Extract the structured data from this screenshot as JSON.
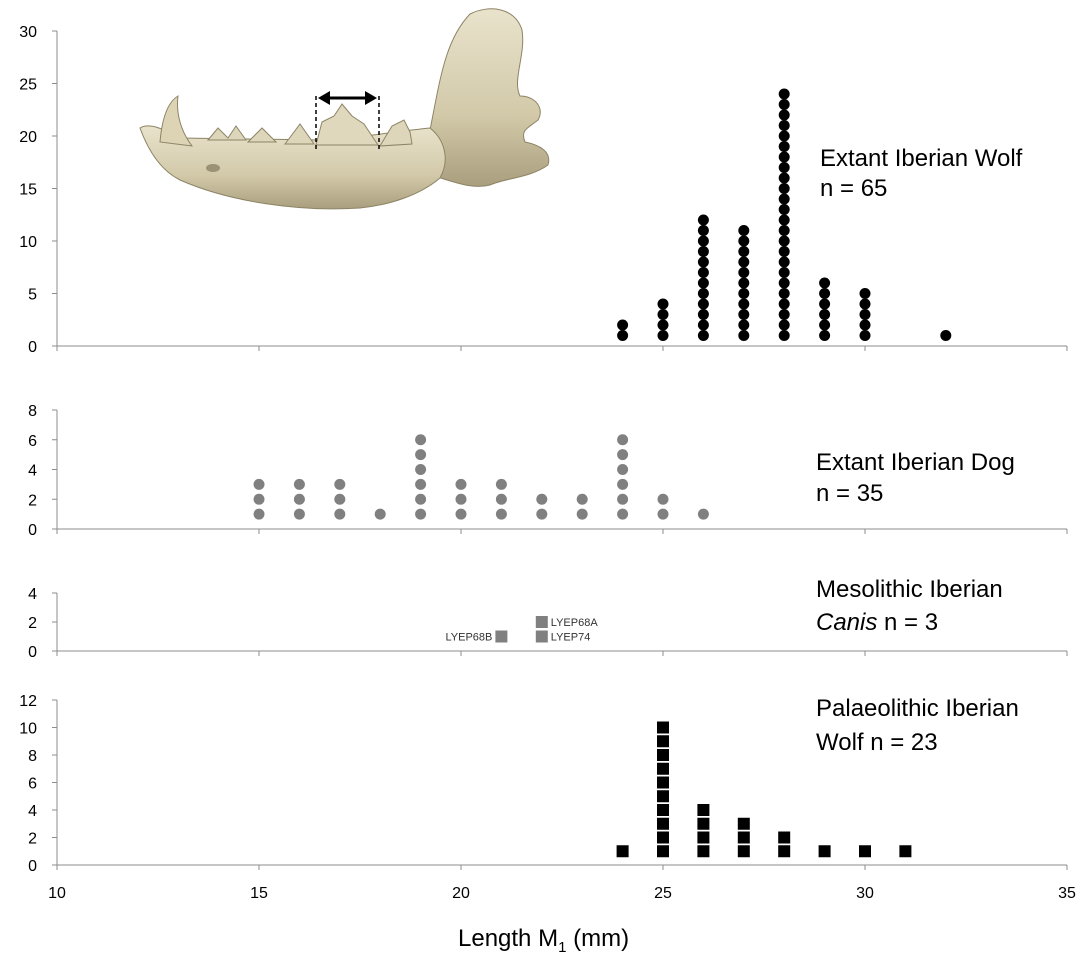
{
  "chart_data": [
    {
      "type": "scatter",
      "marker": "circle",
      "color": "#000000",
      "title_line1": "Extant Iberian Wolf",
      "title_line2": "n = 65",
      "ylim": [
        0,
        30
      ],
      "yticks": [
        0,
        5,
        10,
        15,
        20,
        25,
        30
      ],
      "columns": [
        {
          "x": 24,
          "count": 2
        },
        {
          "x": 25,
          "count": 4
        },
        {
          "x": 26,
          "count": 12
        },
        {
          "x": 27,
          "count": 11
        },
        {
          "x": 28,
          "count": 24
        },
        {
          "x": 29,
          "count": 6
        },
        {
          "x": 30,
          "count": 5
        },
        {
          "x": 32,
          "count": 1
        }
      ]
    },
    {
      "type": "scatter",
      "marker": "circle",
      "color": "#808080",
      "title_line1": "Extant Iberian Dog",
      "title_line2": "n = 35",
      "ylim": [
        0,
        8
      ],
      "yticks": [
        0,
        2,
        4,
        6,
        8
      ],
      "columns": [
        {
          "x": 15,
          "count": 3
        },
        {
          "x": 16,
          "count": 3
        },
        {
          "x": 17,
          "count": 3
        },
        {
          "x": 18,
          "count": 1
        },
        {
          "x": 19,
          "count": 6
        },
        {
          "x": 20,
          "count": 3
        },
        {
          "x": 21,
          "count": 3
        },
        {
          "x": 22,
          "count": 2
        },
        {
          "x": 23,
          "count": 2
        },
        {
          "x": 24,
          "count": 6
        },
        {
          "x": 25,
          "count": 2
        },
        {
          "x": 26,
          "count": 1
        }
      ]
    },
    {
      "type": "scatter",
      "marker": "square",
      "color": "#808080",
      "title_line1": "Mesolithic Iberian",
      "title_italic": "Canis",
      "title_rest": " n = 3",
      "ylim": [
        0,
        4
      ],
      "yticks": [
        0,
        2,
        4
      ],
      "points": [
        {
          "x": 21,
          "y": 1,
          "label": "LYEP68B",
          "label_side": "left"
        },
        {
          "x": 22,
          "y": 1,
          "label": "LYEP74",
          "label_side": "right"
        },
        {
          "x": 22,
          "y": 2,
          "label": "LYEP68A",
          "label_side": "right"
        }
      ]
    },
    {
      "type": "scatter",
      "marker": "square",
      "color": "#000000",
      "title_line1": "Palaeolithic Iberian",
      "title_line2": "Wolf n = 23",
      "ylim": [
        0,
        12
      ],
      "yticks": [
        0,
        2,
        4,
        6,
        8,
        10,
        12
      ],
      "columns": [
        {
          "x": 24,
          "count": 1
        },
        {
          "x": 25,
          "count": 10
        },
        {
          "x": 26,
          "count": 4
        },
        {
          "x": 27,
          "count": 3
        },
        {
          "x": 28,
          "count": 2
        },
        {
          "x": 29,
          "count": 1
        },
        {
          "x": 30,
          "count": 1
        },
        {
          "x": 31,
          "count": 1
        }
      ]
    }
  ],
  "xaxis": {
    "xlim": [
      10,
      35
    ],
    "xticks": [
      10,
      15,
      20,
      25,
      30,
      35
    ],
    "label_main": "Length M",
    "label_sub": "1",
    "label_unit": " (mm)"
  },
  "inset": {
    "subject": "canid mandible photograph with M1 length measurement arrow"
  }
}
